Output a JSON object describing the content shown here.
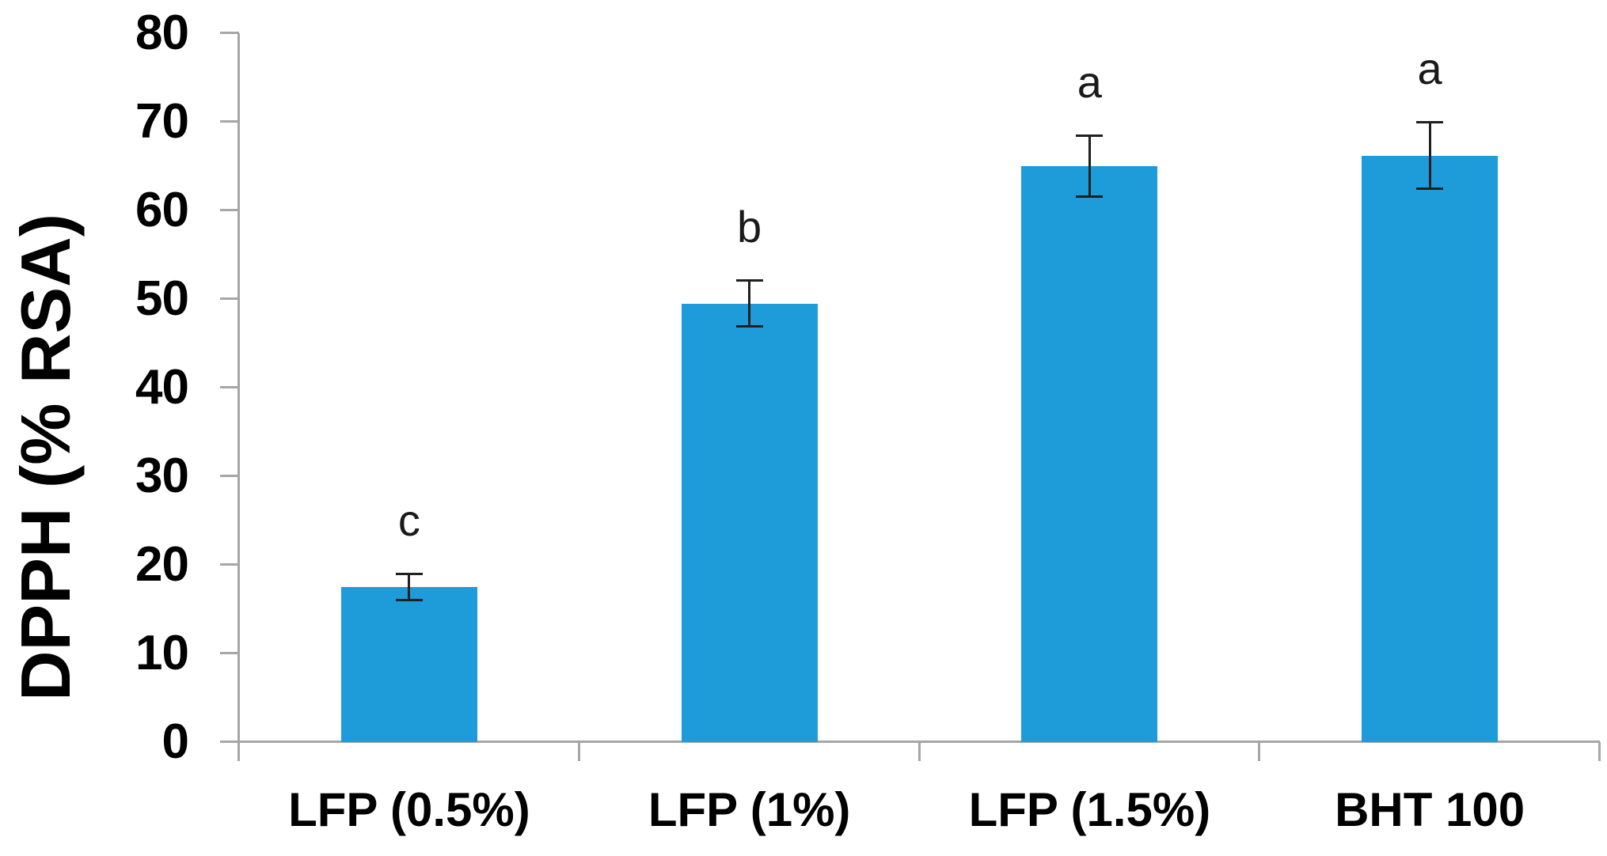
{
  "chart_data": {
    "type": "bar",
    "title": "",
    "xlabel": "",
    "ylabel": "DPPH (% RSA)",
    "categories": [
      "LFP (0.5%)",
      "LFP (1%)",
      "LFP (1.5%)",
      "BHT 100"
    ],
    "values": [
      17.5,
      49.5,
      65.0,
      66.2
    ],
    "error_bars": [
      1.5,
      2.6,
      3.5,
      3.8
    ],
    "significance_letters": [
      "c",
      "b",
      "a",
      "a"
    ],
    "ylim": [
      0,
      80
    ],
    "yticks": [
      0,
      10,
      20,
      30,
      40,
      50,
      60,
      70,
      80
    ],
    "grid": false,
    "legend": false,
    "bar_color": "#1e9cd9",
    "axis_color": "#a6a6a6",
    "error_bar_color": "#1f1f1f",
    "text_color": "#000000"
  }
}
